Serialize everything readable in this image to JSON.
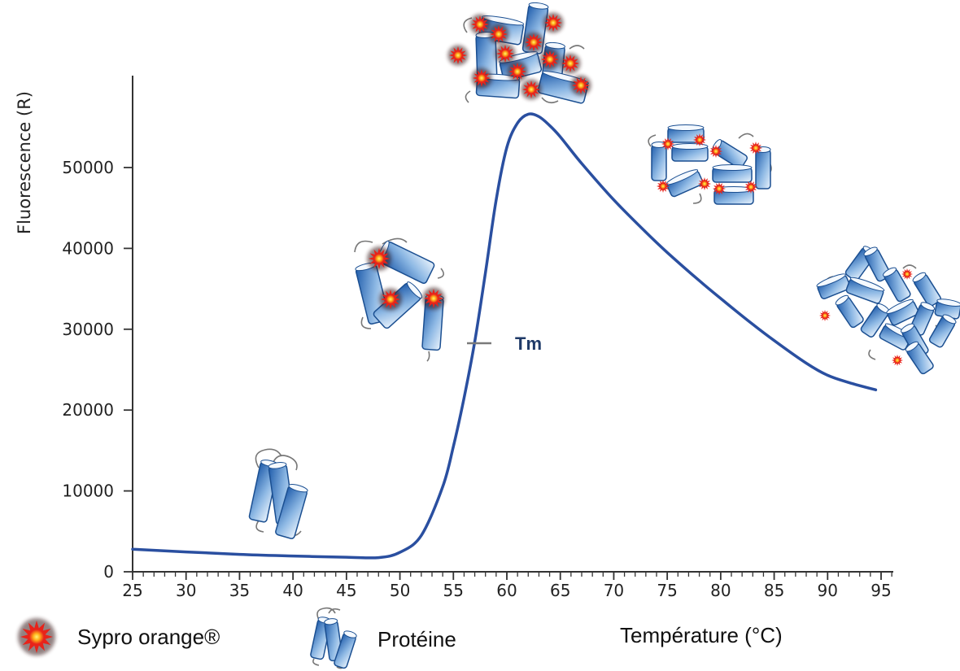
{
  "chart_data": {
    "type": "line",
    "xlabel": "Température (°C)",
    "ylabel": "Fluorescence (R)",
    "xlim": [
      25,
      96
    ],
    "ylim": [
      0,
      61000
    ],
    "xticks": [
      25,
      30,
      35,
      40,
      45,
      50,
      55,
      60,
      65,
      70,
      75,
      80,
      85,
      90,
      95
    ],
    "yticks": [
      0,
      10000,
      20000,
      30000,
      40000,
      50000
    ],
    "grid": false,
    "line_color": "#2a4fa0",
    "series": [
      {
        "x": [
          25,
          30,
          35,
          40,
          45,
          48,
          50,
          52,
          54,
          55,
          56,
          57,
          58,
          59,
          60,
          61,
          62,
          63,
          64,
          65,
          67,
          70,
          73,
          75,
          78,
          80,
          83,
          85,
          88,
          90,
          92,
          94.5
        ],
        "y": [
          2800,
          2450,
          2150,
          1950,
          1800,
          1750,
          2400,
          4500,
          10500,
          15500,
          21500,
          28500,
          37000,
          46000,
          52500,
          55500,
          56600,
          56300,
          55200,
          53800,
          50500,
          46000,
          42000,
          39500,
          36000,
          33800,
          30600,
          28600,
          25800,
          24300,
          23400,
          22500
        ]
      }
    ],
    "annotations": [
      {
        "text": "Tm",
        "x": 57.8,
        "y": 28000
      }
    ]
  },
  "legend": [
    {
      "label": "Sypro orange®",
      "icon": "sypro-orange-burst-icon"
    },
    {
      "label": "Protéine",
      "icon": "protein-icon"
    }
  ],
  "colors": {
    "curve": "#2a4fa0",
    "protein_dark": "#1f5cab",
    "protein_light": "#eaf3fc",
    "dye_red": "#e8231a",
    "dye_yellow": "#ffe033"
  }
}
